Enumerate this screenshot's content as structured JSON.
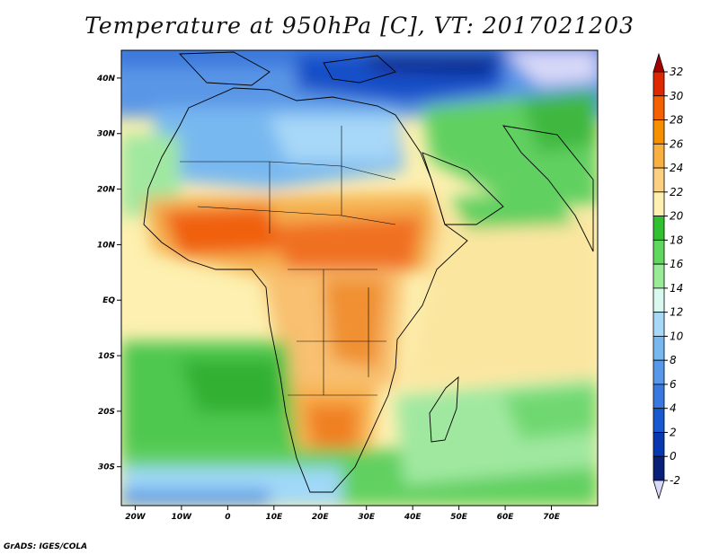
{
  "title": "Temperature at 950hPa [C], VT: 2017021203",
  "credit": "GrADS: IGES/COLA",
  "map": {
    "lon_range": [
      -23,
      80
    ],
    "lat_range": [
      -37,
      45
    ],
    "lat_ticks": [
      {
        "value": 40,
        "label": "40N"
      },
      {
        "value": 30,
        "label": "30N"
      },
      {
        "value": 20,
        "label": "20N"
      },
      {
        "value": 10,
        "label": "10N"
      },
      {
        "value": 0,
        "label": "EQ"
      },
      {
        "value": -10,
        "label": "10S"
      },
      {
        "value": -20,
        "label": "20S"
      },
      {
        "value": -30,
        "label": "30S"
      }
    ],
    "lon_ticks": [
      {
        "value": -20,
        "label": "20W"
      },
      {
        "value": -10,
        "label": "10W"
      },
      {
        "value": 0,
        "label": "0"
      },
      {
        "value": 10,
        "label": "10E"
      },
      {
        "value": 20,
        "label": "20E"
      },
      {
        "value": 30,
        "label": "30E"
      },
      {
        "value": 40,
        "label": "40E"
      },
      {
        "value": 50,
        "label": "50E"
      },
      {
        "value": 60,
        "label": "60E"
      },
      {
        "value": 70,
        "label": "70E"
      }
    ]
  },
  "colorbar": {
    "levels": [
      "32",
      "30",
      "28",
      "26",
      "24",
      "22",
      "20",
      "18",
      "16",
      "14",
      "12",
      "10",
      "8",
      "6",
      "4",
      "2",
      "0",
      "-2"
    ],
    "colors": [
      "#a50000",
      "#e02800",
      "#f56000",
      "#f79000",
      "#f9b040",
      "#fbd080",
      "#fdf0b0",
      "#30c030",
      "#60d860",
      "#98ec98",
      "#d8f8f0",
      "#a8d8f8",
      "#78b8f0",
      "#5898e8",
      "#3878e0",
      "#1858d0",
      "#0838b0",
      "#082078",
      "#d8d8f8"
    ]
  },
  "regions": {
    "ocean_colors": [
      "#3070d8",
      "#5090e8",
      "#70b0f0",
      "#a0d0f8",
      "#40c040",
      "#60d060",
      "#a0e8a0",
      "#fdf0b0"
    ],
    "land_colors": [
      "#f0a030",
      "#f5b050",
      "#f8c878",
      "#fbd890",
      "#f06000",
      "#e04000"
    ]
  }
}
